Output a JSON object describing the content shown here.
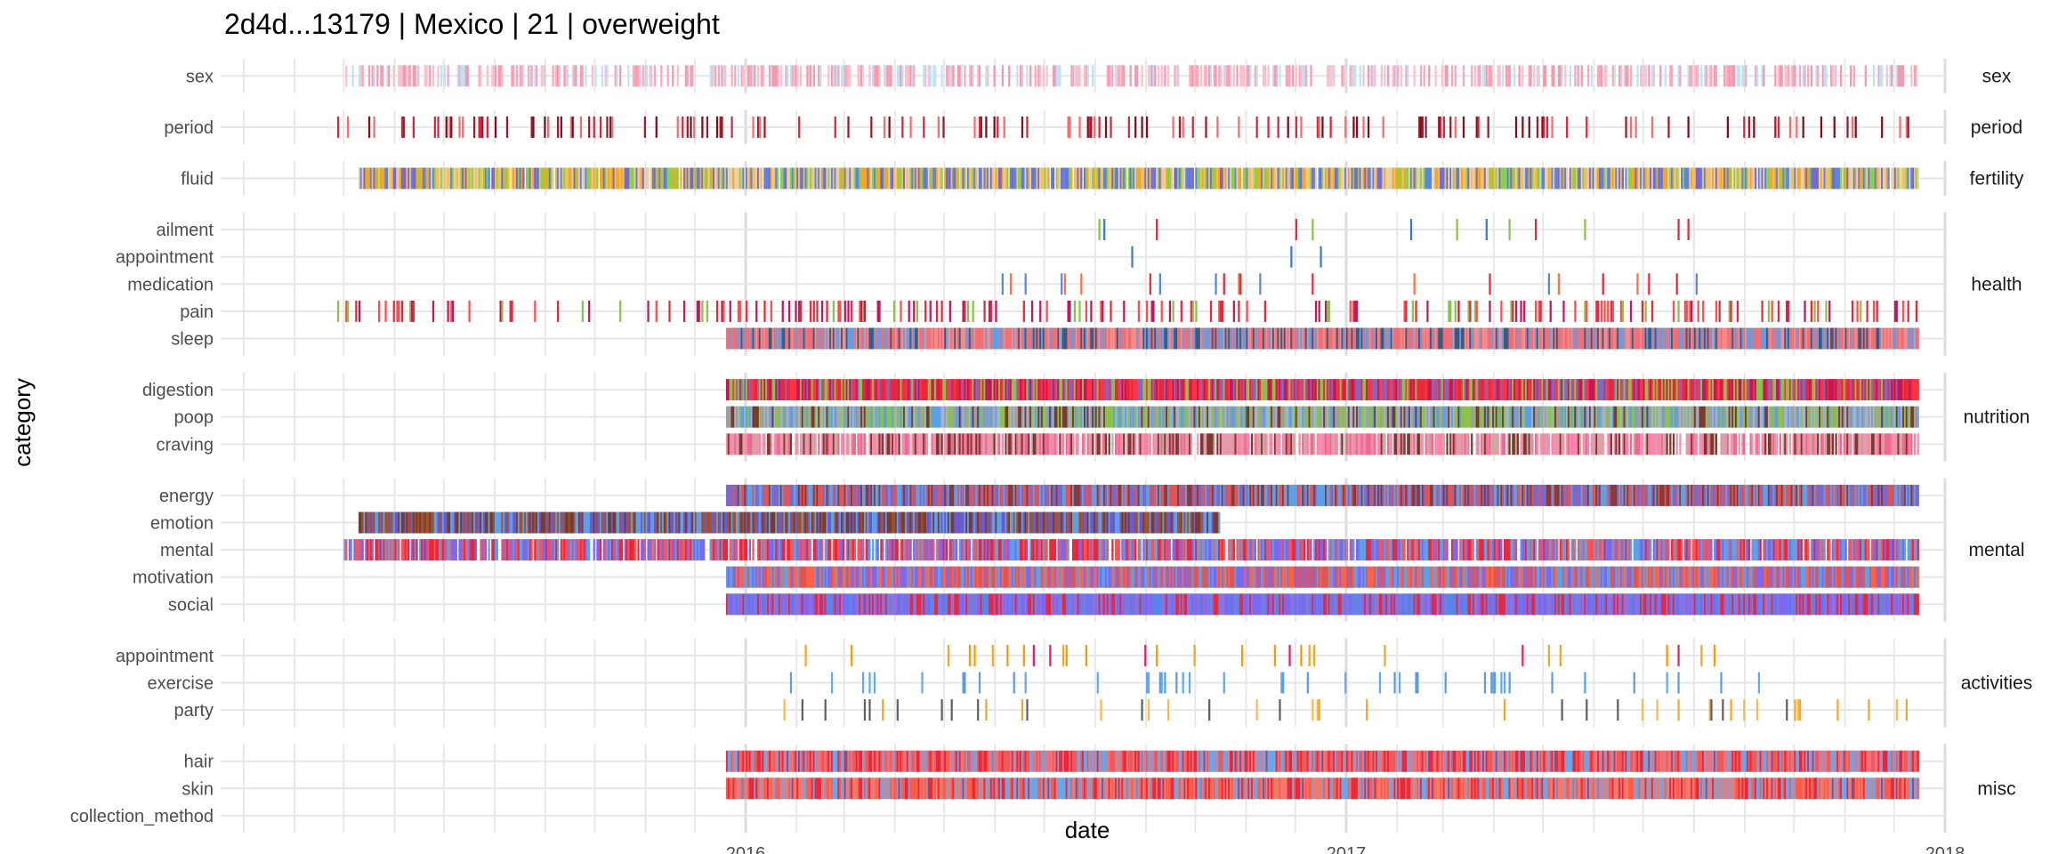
{
  "chart_data": {
    "type": "timeline",
    "title": "2d4d...13179 | Mexico | 21 | overweight",
    "xlabel": "date",
    "ylabel": "category",
    "x_ticks": [
      "2016",
      "2017",
      "2018"
    ],
    "x_range": [
      "2015-02-15",
      "2018-01-01"
    ],
    "grid": true,
    "facets": [
      {
        "name": "sex",
        "categories": [
          {
            "name": "sex",
            "start": "2015-05-01",
            "end": "2017-12-15",
            "density": 0.5,
            "colors": [
              "#f8a8bc",
              "#f49ab0",
              "#fbc0cd",
              "#bfe3f5"
            ]
          }
        ]
      },
      {
        "name": "period",
        "categories": [
          {
            "name": "period",
            "start": "2015-04-01",
            "end": "2017-12-15",
            "density": 0.15,
            "colors": [
              "#d7263d",
              "#9e1b2b",
              "#ff6a6a",
              "#7a1020"
            ]
          }
        ]
      },
      {
        "name": "fertility",
        "categories": [
          {
            "name": "fluid",
            "start": "2015-05-10",
            "end": "2017-12-15",
            "density": 0.97,
            "colors": [
              "#e9cfae",
              "#5b84e8",
              "#f5a623",
              "#8bd14a",
              "#7b68c8",
              "#f5c05a"
            ]
          }
        ]
      },
      {
        "name": "health",
        "categories": [
          {
            "name": "ailment",
            "start": "2016-06-10",
            "end": "2017-09-15",
            "density": 0.03,
            "colors": [
              "#8bc34a",
              "#2f7be8",
              "#e8283b"
            ]
          },
          {
            "name": "appointment",
            "start": "2016-08-10",
            "end": "2017-02-10",
            "density": 0.015,
            "colors": [
              "#3a7bd5"
            ]
          },
          {
            "name": "medication",
            "start": "2016-06-01",
            "end": "2017-09-20",
            "density": 0.04,
            "colors": [
              "#e8283b",
              "#5b84e8",
              "#ff7043"
            ]
          },
          {
            "name": "pain",
            "start": "2015-04-25",
            "end": "2017-12-15",
            "density": 0.2,
            "colors": [
              "#e8283b",
              "#ff4d4d",
              "#8bc34a",
              "#c2185b"
            ]
          },
          {
            "name": "sleep",
            "start": "2015-12-20",
            "end": "2017-12-15",
            "density": 1,
            "colors": [
              "#f07178",
              "#ee6e73",
              "#5da0e8",
              "#3d5a80",
              "#f48c8c"
            ]
          }
        ]
      },
      {
        "name": "nutrition",
        "categories": [
          {
            "name": "digestion",
            "start": "2015-12-20",
            "end": "2017-12-15",
            "density": 1,
            "colors": [
              "#e8283b",
              "#c2185b",
              "#ff3344",
              "#7b68c8",
              "#8bc34a"
            ]
          },
          {
            "name": "poop",
            "start": "2015-12-20",
            "end": "2017-12-15",
            "density": 1,
            "colors": [
              "#5da0e8",
              "#8bc34a",
              "#9e9e9e",
              "#7a3b2e",
              "#a0b4d0"
            ]
          },
          {
            "name": "craving",
            "start": "2015-12-20",
            "end": "2017-12-15",
            "density": 0.85,
            "colors": [
              "#f48fb1",
              "#ec6a8e",
              "#d4a5a5",
              "#7a3b2e",
              "#ff7fa6"
            ]
          }
        ]
      },
      {
        "name": "mental",
        "categories": [
          {
            "name": "energy",
            "start": "2015-12-20",
            "end": "2017-12-15",
            "density": 1,
            "colors": [
              "#e05555",
              "#5da0e8",
              "#8b3a3a",
              "#7b68c8"
            ]
          },
          {
            "name": "emotion",
            "start": "2015-05-10",
            "end": "2016-10-15",
            "density": 1,
            "colors": [
              "#5da0e8",
              "#7a3b2e",
              "#6a5acd",
              "#a0522d"
            ]
          },
          {
            "name": "mental",
            "start": "2015-05-01",
            "end": "2017-12-15",
            "density": 0.9,
            "colors": [
              "#ff5252",
              "#7b68ee",
              "#e8283b",
              "#5da0e8"
            ]
          },
          {
            "name": "motivation",
            "start": "2015-12-20",
            "end": "2017-12-15",
            "density": 1,
            "colors": [
              "#ff6347",
              "#7b68ee",
              "#5da0e8",
              "#e05555"
            ]
          },
          {
            "name": "social",
            "start": "2015-12-20",
            "end": "2017-12-15",
            "density": 1,
            "colors": [
              "#7b68ee",
              "#5b84e8",
              "#e8283b",
              "#9370db"
            ]
          }
        ]
      },
      {
        "name": "activities",
        "categories": [
          {
            "name": "appointment",
            "start": "2016-01-01",
            "end": "2017-09-30",
            "density": 0.05,
            "colors": [
              "#e91e63",
              "#f5a623",
              "#ff9800"
            ]
          },
          {
            "name": "exercise",
            "start": "2016-01-20",
            "end": "2017-10-20",
            "density": 0.06,
            "colors": [
              "#64a8f0",
              "#5b9be8"
            ]
          },
          {
            "name": "party",
            "start": "2016-01-20",
            "end": "2017-12-15",
            "density": 0.05,
            "colors": [
              "#f5a623",
              "#616161",
              "#ffb84d"
            ]
          }
        ]
      },
      {
        "name": "misc",
        "categories": [
          {
            "name": "hair",
            "start": "2015-12-20",
            "end": "2017-12-15",
            "density": 1,
            "colors": [
              "#ee5a5a",
              "#64a8f0",
              "#e8283b",
              "#f07178"
            ]
          },
          {
            "name": "skin",
            "start": "2015-12-20",
            "end": "2017-12-15",
            "density": 1,
            "colors": [
              "#ff5a4a",
              "#64a8f0",
              "#e8283b",
              "#f27a6a"
            ]
          },
          {
            "name": "collection_method",
            "start": null,
            "end": null,
            "density": 0,
            "colors": []
          }
        ]
      }
    ]
  }
}
